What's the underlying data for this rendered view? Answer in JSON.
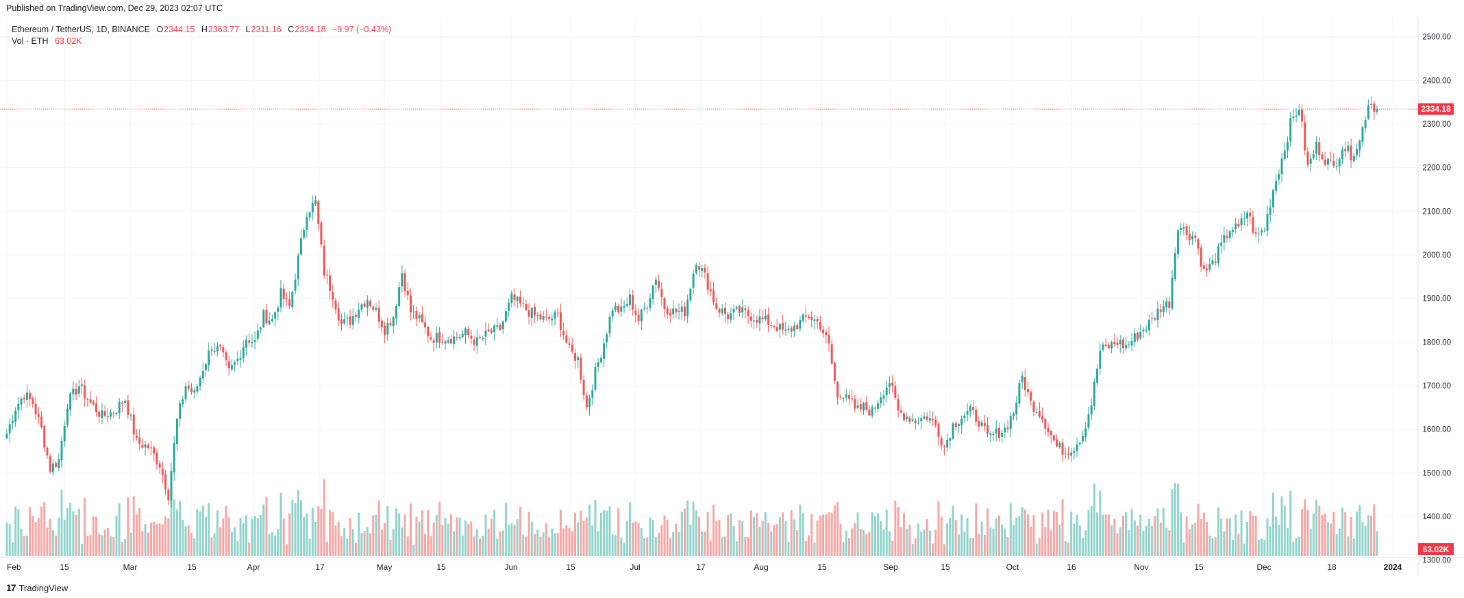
{
  "header": {
    "published": "Published on TradingView.com, Dec 29, 2023 02:07 UTC"
  },
  "legend": {
    "symbol": "Ethereum / TetherUS, 1D, BINANCE",
    "o_label": "O",
    "o_value": "2344.15",
    "h_label": "H",
    "h_value": "2363.77",
    "l_label": "L",
    "l_value": "2311.16",
    "c_label": "C",
    "c_value": "2334.18",
    "change": "−9.97 (−0.43%)",
    "vol_label": "Vol · ETH",
    "vol_value": "63.02K"
  },
  "footer": {
    "brand": "TradingView",
    "logo": "17"
  },
  "colors": {
    "up": "#26a69a",
    "down": "#ef5350",
    "up_vol": "#8fd3cb",
    "down_vol": "#f4a6a4",
    "price_tag": "#f23645",
    "grid": "#f0f3fa"
  },
  "chart_data": {
    "type": "candlestick",
    "title": "Ethereum / TetherUS, 1D, BINANCE",
    "y_ticks": [
      "2500.00",
      "2400.00",
      "2300.00",
      "2200.00",
      "2100.00",
      "2000.00",
      "1900.00",
      "1800.00",
      "1700.00",
      "1600.00",
      "1500.00",
      "1400.00",
      "1300.00"
    ],
    "x_ticks": [
      "Feb",
      "15",
      "Mar",
      "15",
      "Apr",
      "17",
      "May",
      "15",
      "Jun",
      "15",
      "Jul",
      "17",
      "Aug",
      "15",
      "Sep",
      "15",
      "Oct",
      "16",
      "Nov",
      "15",
      "Dec",
      "18",
      "2024"
    ],
    "ylim": [
      1265,
      2545
    ],
    "last_price": "2334.18",
    "last_volume": "63.02K",
    "price_anchors": [
      [
        0,
        1590
      ],
      [
        3,
        1650
      ],
      [
        6,
        1680
      ],
      [
        9,
        1660
      ],
      [
        12,
        1600
      ],
      [
        15,
        1510
      ],
      [
        18,
        1530
      ],
      [
        21,
        1660
      ],
      [
        25,
        1700
      ],
      [
        29,
        1660
      ],
      [
        33,
        1630
      ],
      [
        37,
        1640
      ],
      [
        41,
        1670
      ],
      [
        45,
        1570
      ],
      [
        49,
        1560
      ],
      [
        53,
        1520
      ],
      [
        56,
        1450
      ],
      [
        59,
        1620
      ],
      [
        62,
        1700
      ],
      [
        65,
        1680
      ],
      [
        68,
        1740
      ],
      [
        71,
        1790
      ],
      [
        74,
        1780
      ],
      [
        77,
        1730
      ],
      [
        80,
        1760
      ],
      [
        83,
        1810
      ],
      [
        86,
        1800
      ],
      [
        89,
        1860
      ],
      [
        92,
        1850
      ],
      [
        95,
        1910
      ],
      [
        98,
        1880
      ],
      [
        101,
        1990
      ],
      [
        104,
        2100
      ],
      [
        107,
        2120
      ],
      [
        110,
        1960
      ],
      [
        113,
        1910
      ],
      [
        116,
        1840
      ],
      [
        119,
        1850
      ],
      [
        122,
        1880
      ],
      [
        125,
        1900
      ],
      [
        128,
        1870
      ],
      [
        131,
        1830
      ],
      [
        134,
        1860
      ],
      [
        137,
        1960
      ],
      [
        140,
        1870
      ],
      [
        143,
        1850
      ],
      [
        147,
        1810
      ],
      [
        151,
        1810
      ],
      [
        155,
        1810
      ],
      [
        159,
        1820
      ],
      [
        163,
        1800
      ],
      [
        167,
        1820
      ],
      [
        171,
        1830
      ],
      [
        175,
        1900
      ],
      [
        179,
        1880
      ],
      [
        183,
        1860
      ],
      [
        187,
        1850
      ],
      [
        191,
        1860
      ],
      [
        195,
        1780
      ],
      [
        198,
        1760
      ],
      [
        201,
        1650
      ],
      [
        204,
        1730
      ],
      [
        207,
        1800
      ],
      [
        210,
        1880
      ],
      [
        213,
        1870
      ],
      [
        216,
        1900
      ],
      [
        219,
        1850
      ],
      [
        222,
        1890
      ],
      [
        225,
        1950
      ],
      [
        228,
        1880
      ],
      [
        231,
        1870
      ],
      [
        235,
        1870
      ],
      [
        239,
        1990
      ],
      [
        242,
        1950
      ],
      [
        246,
        1880
      ],
      [
        250,
        1860
      ],
      [
        254,
        1870
      ],
      [
        258,
        1860
      ],
      [
        262,
        1850
      ],
      [
        266,
        1840
      ],
      [
        270,
        1820
      ],
      [
        274,
        1840
      ],
      [
        278,
        1860
      ],
      [
        282,
        1840
      ],
      [
        285,
        1790
      ],
      [
        288,
        1670
      ],
      [
        291,
        1690
      ],
      [
        294,
        1640
      ],
      [
        297,
        1650
      ],
      [
        300,
        1640
      ],
      [
        303,
        1680
      ],
      [
        306,
        1710
      ],
      [
        309,
        1640
      ],
      [
        312,
        1630
      ],
      [
        315,
        1620
      ],
      [
        319,
        1630
      ],
      [
        322,
        1610
      ],
      [
        325,
        1560
      ],
      [
        328,
        1610
      ],
      [
        331,
        1630
      ],
      [
        334,
        1640
      ],
      [
        337,
        1620
      ],
      [
        340,
        1580
      ],
      [
        343,
        1590
      ],
      [
        346,
        1600
      ],
      [
        349,
        1640
      ],
      [
        352,
        1720
      ],
      [
        355,
        1660
      ],
      [
        358,
        1640
      ],
      [
        361,
        1600
      ],
      [
        364,
        1560
      ],
      [
        367,
        1550
      ],
      [
        370,
        1560
      ],
      [
        373,
        1590
      ],
      [
        376,
        1660
      ],
      [
        379,
        1780
      ],
      [
        382,
        1790
      ],
      [
        385,
        1800
      ],
      [
        388,
        1790
      ],
      [
        391,
        1810
      ],
      [
        394,
        1830
      ],
      [
        397,
        1850
      ],
      [
        400,
        1880
      ],
      [
        403,
        1890
      ],
      [
        406,
        2070
      ],
      [
        409,
        2050
      ],
      [
        412,
        2040
      ],
      [
        415,
        1960
      ],
      [
        418,
        1980
      ],
      [
        421,
        2020
      ],
      [
        424,
        2060
      ],
      [
        427,
        2060
      ],
      [
        430,
        2100
      ],
      [
        433,
        2040
      ],
      [
        436,
        2060
      ],
      [
        439,
        2150
      ],
      [
        442,
        2220
      ],
      [
        445,
        2300
      ],
      [
        448,
        2340
      ],
      [
        451,
        2200
      ],
      [
        454,
        2250
      ],
      [
        457,
        2220
      ],
      [
        460,
        2200
      ],
      [
        463,
        2250
      ],
      [
        466,
        2230
      ],
      [
        469,
        2260
      ],
      [
        472,
        2350
      ],
      [
        475,
        2334
      ]
    ]
  }
}
